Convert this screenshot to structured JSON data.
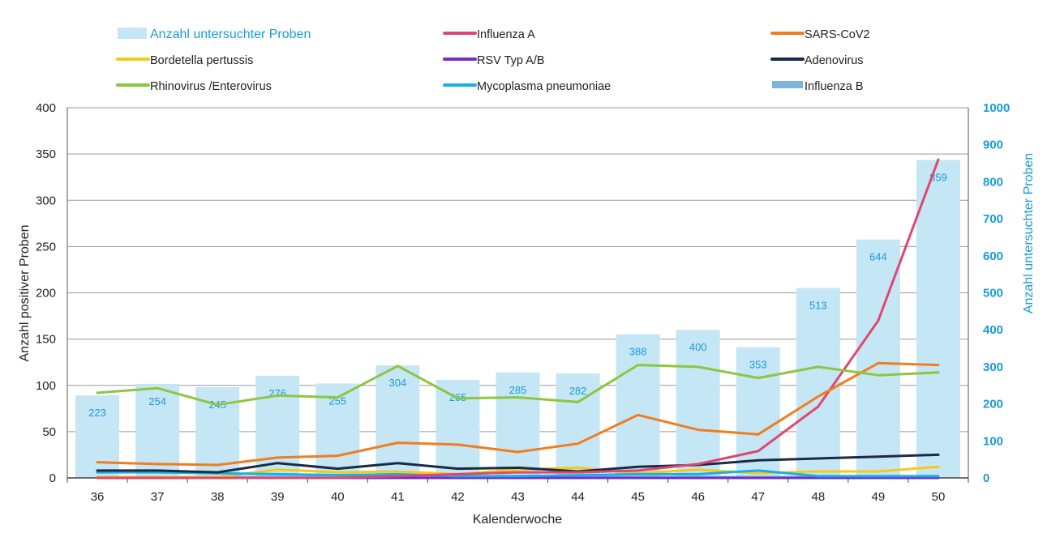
{
  "chart_data": {
    "type": "bar+line",
    "xlabel": "Kalenderwoche",
    "ylabel": "Anzahl positiver Proben",
    "y2label": "Anzahl untersuchter Proben",
    "ylim": [
      0,
      400
    ],
    "y2lim": [
      0,
      1000
    ],
    "yticks": [
      0,
      50,
      100,
      150,
      200,
      250,
      300,
      350,
      400
    ],
    "y2ticks": [
      0,
      100,
      200,
      300,
      400,
      500,
      600,
      700,
      800,
      900,
      1000
    ],
    "grid": true,
    "legend_position": "top",
    "categories": [
      "36",
      "37",
      "38",
      "39",
      "40",
      "41",
      "42",
      "43",
      "44",
      "45",
      "46",
      "47",
      "48",
      "49",
      "50"
    ],
    "bars": {
      "name": "Anzahl untersuchter Proben",
      "axis": "right",
      "color": "#c5e6f5",
      "label_color": "#1a9bd7",
      "values": [
        223,
        254,
        245,
        276,
        255,
        304,
        265,
        285,
        282,
        388,
        400,
        353,
        513,
        644,
        859
      ]
    },
    "series": [
      {
        "name": "Influenza A",
        "color": "#e0476f",
        "values": [
          0,
          0,
          0,
          0,
          0,
          2,
          4,
          6,
          6,
          8,
          15,
          29,
          77,
          170,
          344
        ]
      },
      {
        "name": "SARS-CoV2",
        "color": "#f07d1f",
        "values": [
          17,
          15,
          14,
          22,
          24,
          38,
          36,
          28,
          37,
          68,
          52,
          47,
          88,
          124,
          122
        ]
      },
      {
        "name": "Bordetella pertussis",
        "color": "#f7c917",
        "values": [
          1,
          1,
          1,
          9,
          6,
          7,
          4,
          9,
          11,
          5,
          9,
          5,
          7,
          7,
          12
        ]
      },
      {
        "name": "RSV Typ A/B",
        "color": "#7030c8",
        "values": [
          0,
          0,
          0,
          0,
          0,
          0,
          0,
          0,
          0,
          0,
          0,
          0,
          0,
          0,
          0
        ]
      },
      {
        "name": "Adenovirus",
        "color": "#1b2a47",
        "values": [
          8,
          8,
          6,
          16,
          10,
          16,
          10,
          11,
          7,
          12,
          14,
          19,
          21,
          23,
          25
        ]
      },
      {
        "name": "Rhinovirus /Enterovirus",
        "color": "#8dc63f",
        "values": [
          92,
          97,
          79,
          89,
          87,
          121,
          86,
          87,
          82,
          122,
          120,
          108,
          120,
          111,
          114
        ]
      },
      {
        "name": "Mycoplasma pneumoniae",
        "color": "#17b0e8",
        "values": [
          6,
          6,
          5,
          4,
          3,
          4,
          2,
          2,
          3,
          4,
          4,
          8,
          2,
          2,
          2
        ]
      },
      {
        "name": "Influenza B",
        "color": "#7fb3da",
        "values": [
          1,
          1,
          1,
          1,
          1,
          1,
          1,
          1,
          1,
          1,
          1,
          1,
          1,
          1,
          1
        ]
      }
    ]
  }
}
